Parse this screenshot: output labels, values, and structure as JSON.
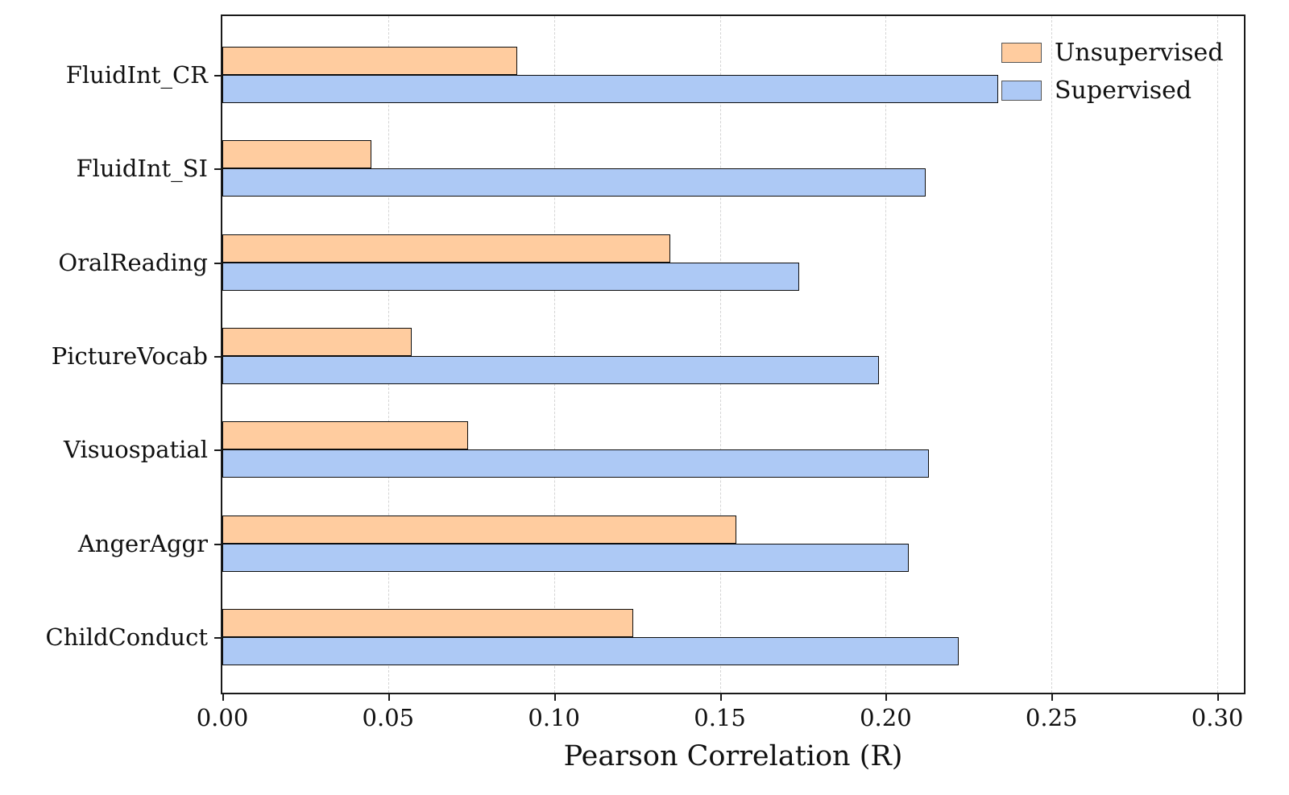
{
  "chart_data": {
    "type": "bar",
    "orientation": "horizontal",
    "title": "",
    "xlabel": "Pearson Correlation (R)",
    "ylabel": "",
    "categories": [
      "FluidInt_CR",
      "FluidInt_SI",
      "OralReading",
      "PictureVocab",
      "Visuospatial",
      "AngerAggr",
      "ChildConduct"
    ],
    "series": [
      {
        "name": "Unsupervised",
        "color": "#ffcc9f",
        "values": [
          0.089,
          0.045,
          0.135,
          0.057,
          0.074,
          0.155,
          0.124
        ]
      },
      {
        "name": "Supervised",
        "color": "#adc9f5",
        "values": [
          0.234,
          0.212,
          0.174,
          0.198,
          0.213,
          0.207,
          0.222
        ]
      }
    ],
    "xlim": [
      0,
      0.308
    ],
    "xticks": [
      0.0,
      0.05,
      0.1,
      0.15,
      0.2,
      0.25,
      0.3
    ],
    "xtick_labels": [
      "0.00",
      "0.05",
      "0.10",
      "0.15",
      "0.20",
      "0.25",
      "0.30"
    ],
    "grid": "vertical-dashed",
    "gridline_color": "#d4d4d4",
    "bar_edge_color": "#0d0d0d",
    "legend_position": "upper-right",
    "legend_entries": [
      "Unsupervised",
      "Supervised"
    ]
  }
}
